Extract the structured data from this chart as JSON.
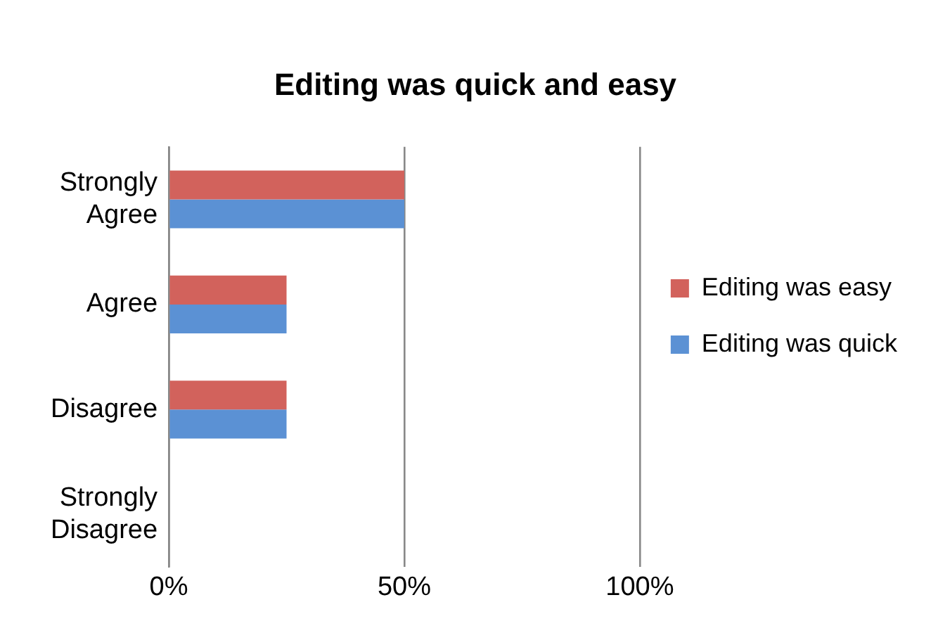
{
  "chart_data": {
    "type": "bar",
    "orientation": "horizontal",
    "title": "Editing was quick and easy",
    "categories": [
      "Strongly Agree",
      "Agree",
      "Disagree",
      "Strongly Disagree"
    ],
    "series": [
      {
        "name": "Editing was easy",
        "color": "#d2625c",
        "values": [
          50,
          25,
          25,
          0
        ]
      },
      {
        "name": "Editing was quick",
        "color": "#5b91d4",
        "values": [
          50,
          25,
          25,
          0
        ]
      }
    ],
    "xlim": [
      0,
      100
    ],
    "xticks": [
      {
        "value": 0,
        "label": "0%"
      },
      {
        "value": 50,
        "label": "50%"
      },
      {
        "value": 100,
        "label": "100%"
      }
    ],
    "grid": "x",
    "legend": "right"
  }
}
